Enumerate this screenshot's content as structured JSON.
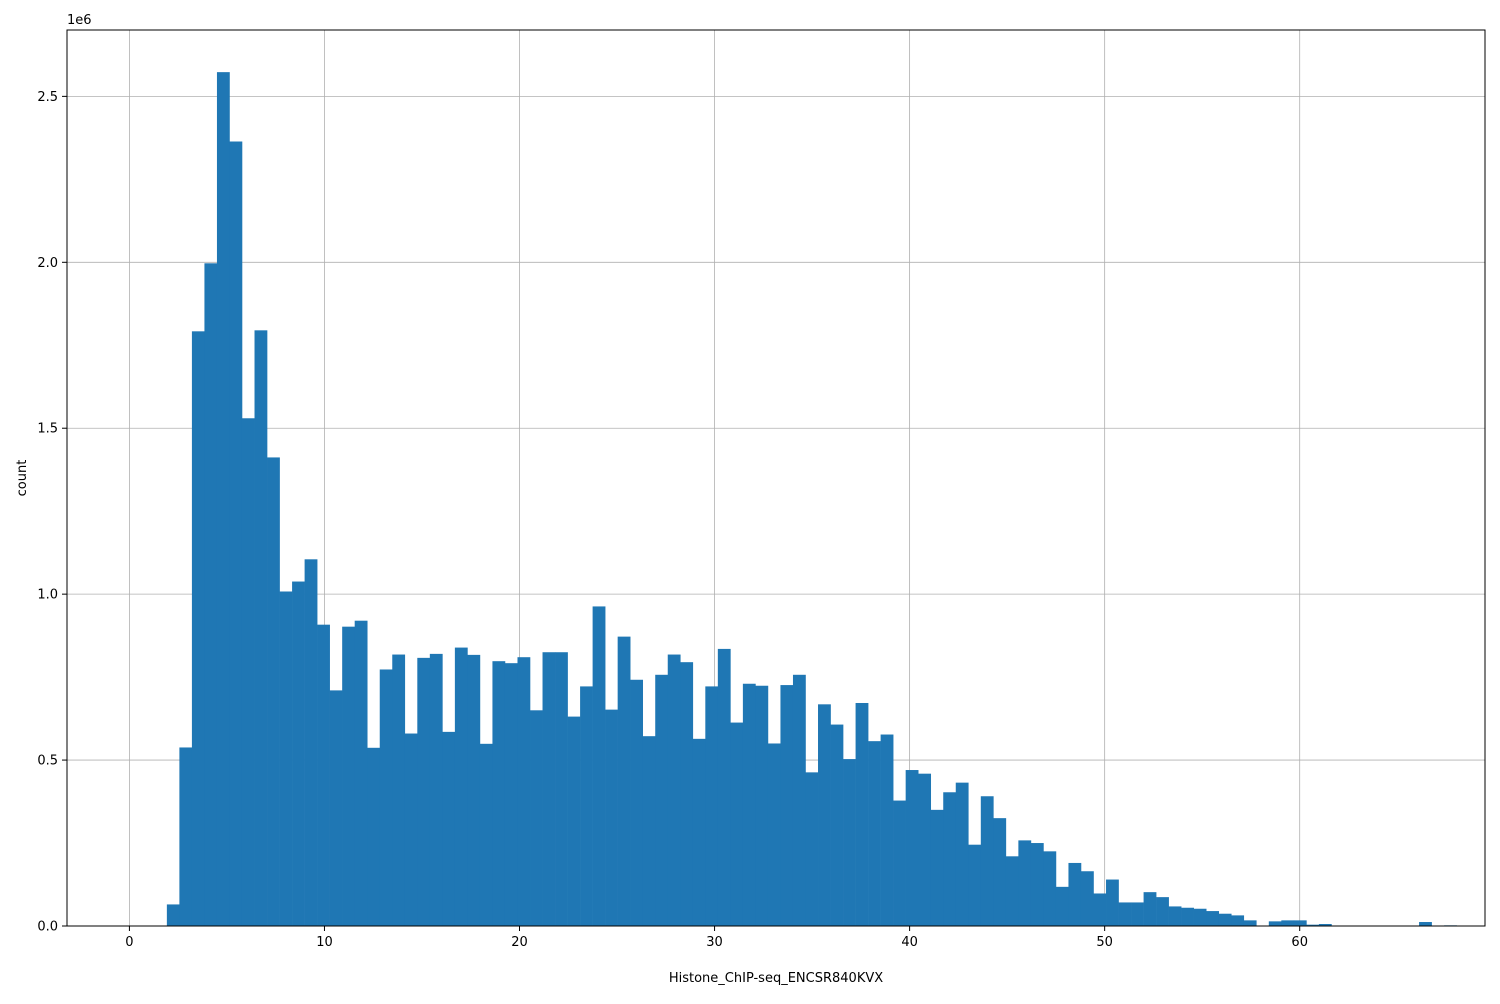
{
  "chart_data": {
    "type": "bar",
    "subtype": "histogram",
    "title": "",
    "xlabel": "Histone_ChIP-seq_ENCSR840KVX",
    "ylabel": "count",
    "y_offset_label": "1e6",
    "y_scale": 1000000,
    "xlim": [
      -3.2,
      69.5
    ],
    "ylim": [
      0,
      2700000
    ],
    "x_ticks": [
      0,
      10,
      20,
      30,
      40,
      50,
      60
    ],
    "x_tick_labels": [
      "0",
      "10",
      "20",
      "30",
      "40",
      "50",
      "60"
    ],
    "y_ticks": [
      0,
      500000,
      1000000,
      1500000,
      2000000,
      2500000
    ],
    "y_tick_labels": [
      "0.0",
      "0.5",
      "1.0",
      "1.5",
      "2.0",
      "2.5"
    ],
    "grid": true,
    "bar_color": "#1f77b4",
    "bin_start": 1.92,
    "bin_width": 0.642,
    "values": [
      65000,
      538000,
      1792000,
      1997000,
      2573000,
      2364000,
      1530000,
      1795000,
      1412000,
      1008000,
      1038000,
      1105000,
      908000,
      710000,
      902000,
      920000,
      537000,
      773000,
      818000,
      580000,
      808000,
      820000,
      585000,
      839000,
      817000,
      549000,
      798000,
      792000,
      810000,
      650000,
      825000,
      825000,
      631000,
      722000,
      963000,
      652000,
      872000,
      742000,
      572000,
      757000,
      818000,
      795000,
      564000,
      722000,
      835000,
      613000,
      730000,
      724000,
      550000,
      726000,
      757000,
      463000,
      668000,
      607000,
      503000,
      672000,
      557000,
      577000,
      378000,
      470000,
      459000,
      350000,
      403000,
      432000,
      245000,
      391000,
      325000,
      210000,
      258000,
      250000,
      225000,
      118000,
      190000,
      165000,
      98000,
      140000,
      71000,
      71000,
      102000,
      87000,
      59000,
      55000,
      52000,
      45000,
      37000,
      32000,
      17000,
      0,
      14000,
      17000,
      17000,
      4000,
      6000,
      0,
      0,
      0,
      0,
      0,
      0,
      0,
      12000,
      0,
      2000
    ]
  }
}
